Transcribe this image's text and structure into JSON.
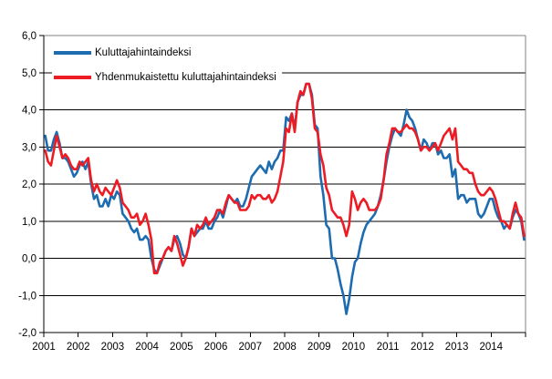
{
  "chart_data": {
    "type": "line",
    "x_frequency": "monthly",
    "x_start": "2001-01",
    "x_end": "2014-12",
    "xticks": [
      "2001",
      "2002",
      "2003",
      "2004",
      "2005",
      "2006",
      "2007",
      "2008",
      "2009",
      "2010",
      "2011",
      "2012",
      "2013",
      "2014"
    ],
    "yticks": [
      "6,0",
      "5,0",
      "4,0",
      "3,0",
      "2,0",
      "1,0",
      "0,0",
      "-1,0",
      "-2,0"
    ],
    "ylim": [
      -2.0,
      6.0
    ],
    "grid": "horizontal",
    "gridline_color": "#000000",
    "frame_color": "#808080",
    "legend_position": "top-left-inside",
    "series": [
      {
        "name": "Kuluttajahintaindeksi",
        "color": "#1E6CB0",
        "values": [
          3.3,
          2.9,
          2.9,
          3.2,
          3.4,
          3.1,
          2.7,
          2.7,
          2.6,
          2.4,
          2.2,
          2.3,
          2.5,
          2.6,
          2.4,
          2.6,
          2.0,
          1.6,
          1.7,
          1.4,
          1.4,
          1.6,
          1.4,
          1.7,
          1.6,
          1.8,
          1.7,
          1.2,
          1.1,
          1.0,
          0.8,
          0.7,
          0.8,
          0.5,
          0.5,
          0.6,
          0.5,
          0.0,
          -0.3,
          -0.4,
          -0.2,
          0.0,
          0.2,
          0.3,
          0.2,
          0.5,
          0.6,
          0.4,
          0.1,
          0.0,
          0.3,
          0.8,
          0.6,
          0.7,
          0.8,
          0.8,
          1.0,
          0.8,
          0.8,
          1.0,
          1.1,
          1.3,
          1.1,
          1.4,
          1.7,
          1.6,
          1.5,
          1.6,
          1.4,
          1.4,
          1.6,
          1.9,
          2.2,
          2.3,
          2.4,
          2.5,
          2.4,
          2.3,
          2.6,
          2.4,
          2.6,
          2.7,
          2.9,
          2.9,
          3.8,
          3.7,
          3.9,
          3.5,
          4.2,
          4.4,
          4.4,
          4.7,
          4.7,
          4.4,
          3.6,
          3.5,
          2.2,
          1.7,
          0.9,
          0.8,
          0.0,
          0.0,
          -0.3,
          -0.7,
          -1.0,
          -1.5,
          -1.1,
          -0.5,
          -0.1,
          0.0,
          0.4,
          0.7,
          0.9,
          1.0,
          1.1,
          1.2,
          1.4,
          1.7,
          2.1,
          2.6,
          3.0,
          3.3,
          3.5,
          3.4,
          3.3,
          3.6,
          4.0,
          3.8,
          3.7,
          3.5,
          3.2,
          2.9,
          3.2,
          3.1,
          2.9,
          3.1,
          3.1,
          2.8,
          2.9,
          2.7,
          2.7,
          2.8,
          2.2,
          2.4,
          1.6,
          1.7,
          1.7,
          1.5,
          1.6,
          1.6,
          1.6,
          1.2,
          1.1,
          1.2,
          1.4,
          1.6,
          1.6,
          1.3,
          1.1,
          1.0,
          0.8,
          0.9,
          0.8,
          1.1,
          1.3,
          1.2,
          1.0,
          0.5
        ]
      },
      {
        "name": "Yhdenmukaistettu kuluttajahintaindeksi",
        "color": "#ED1C24",
        "values": [
          2.9,
          2.6,
          2.5,
          2.9,
          3.3,
          3.0,
          2.7,
          2.8,
          2.7,
          2.5,
          2.4,
          2.4,
          2.6,
          2.5,
          2.6,
          2.7,
          2.1,
          1.8,
          2.0,
          1.8,
          1.7,
          1.9,
          1.8,
          1.7,
          1.9,
          2.1,
          1.9,
          1.5,
          1.4,
          1.3,
          1.1,
          1.1,
          1.2,
          0.9,
          1.0,
          1.2,
          0.9,
          0.5,
          -0.4,
          -0.4,
          -0.1,
          0.0,
          0.2,
          0.3,
          0.2,
          0.6,
          0.4,
          0.1,
          -0.2,
          0.0,
          0.3,
          0.8,
          0.6,
          0.9,
          0.8,
          0.9,
          1.1,
          0.9,
          1.0,
          1.1,
          1.3,
          1.3,
          1.2,
          1.5,
          1.7,
          1.6,
          1.5,
          1.5,
          1.3,
          1.3,
          1.3,
          1.4,
          1.7,
          1.6,
          1.7,
          1.7,
          1.6,
          1.6,
          1.7,
          1.5,
          1.6,
          1.8,
          2.2,
          2.6,
          3.5,
          3.4,
          3.9,
          3.4,
          4.2,
          4.5,
          4.4,
          4.7,
          4.7,
          4.3,
          3.5,
          3.4,
          2.8,
          2.5,
          1.9,
          1.7,
          1.3,
          1.2,
          1.1,
          1.1,
          0.9,
          0.6,
          0.9,
          1.8,
          1.6,
          1.3,
          1.5,
          1.6,
          1.5,
          1.3,
          1.3,
          1.3,
          1.4,
          1.6,
          2.1,
          2.8,
          3.1,
          3.5,
          3.5,
          3.4,
          3.4,
          3.5,
          3.6,
          3.5,
          3.5,
          3.4,
          3.2,
          2.9,
          3.0,
          3.0,
          2.9,
          3.0,
          3.1,
          2.9,
          3.1,
          3.3,
          3.4,
          3.5,
          3.2,
          3.5,
          2.6,
          2.5,
          2.4,
          2.4,
          2.3,
          2.3,
          2.0,
          1.8,
          1.7,
          1.7,
          1.8,
          1.9,
          1.8,
          1.6,
          1.3,
          1.0,
          1.0,
          0.9,
          0.8,
          1.2,
          1.5,
          1.2,
          1.1,
          0.6
        ]
      }
    ]
  }
}
